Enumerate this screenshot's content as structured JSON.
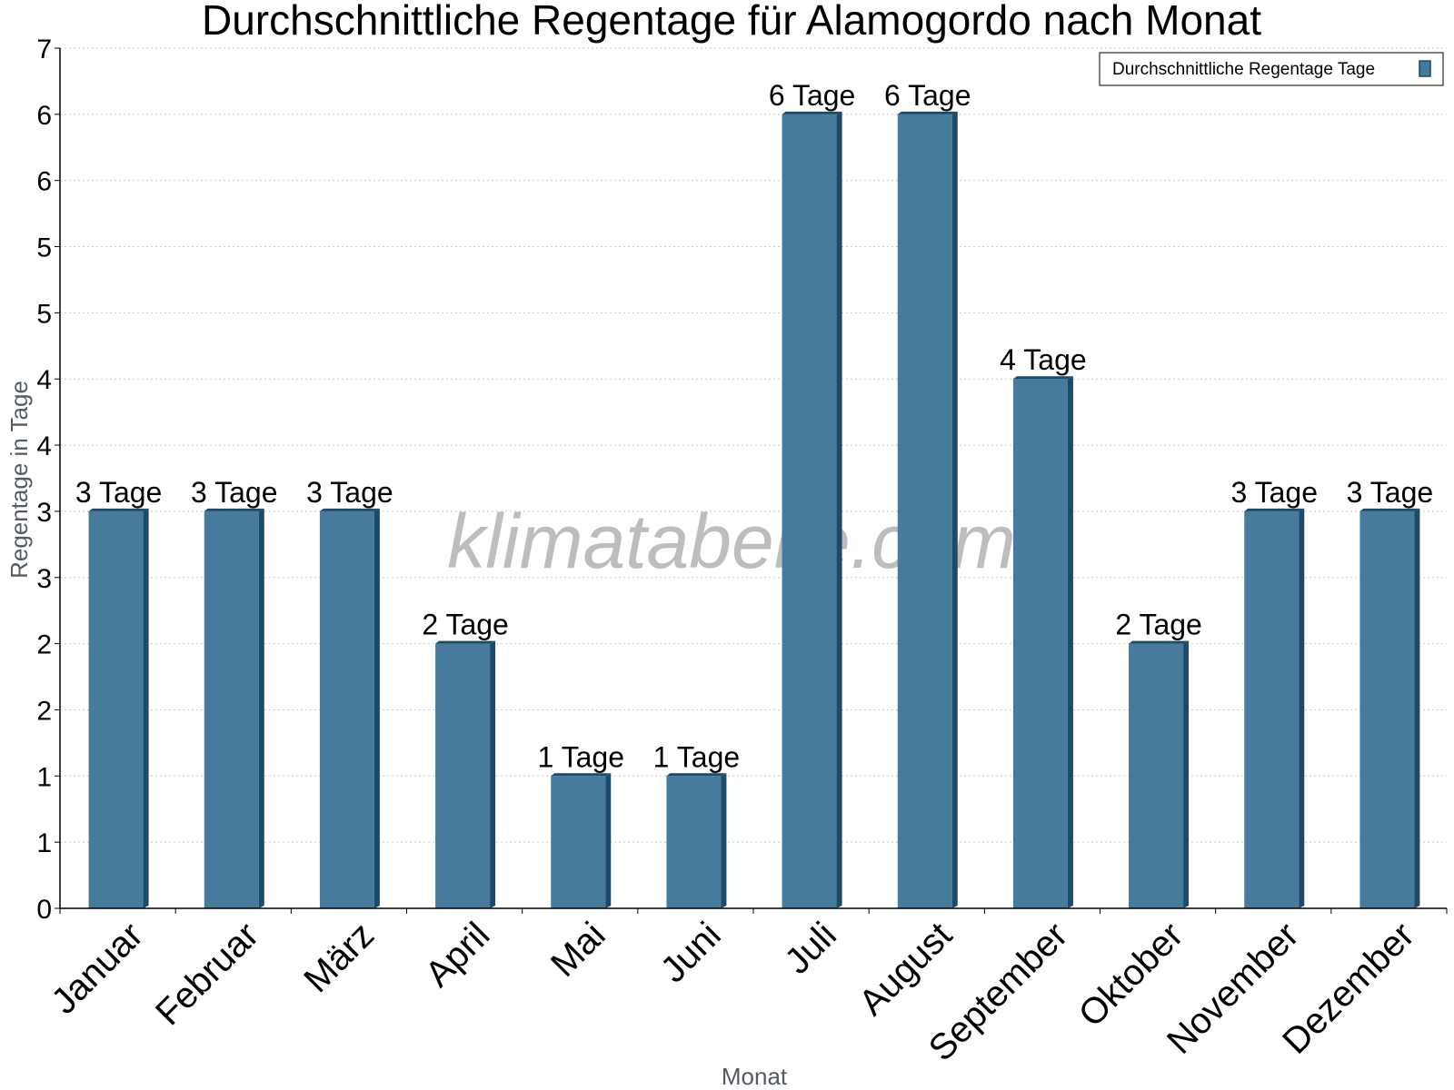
{
  "chart_data": {
    "type": "bar",
    "title": "Durchschnittliche Regentage für Alamogordo nach Monat",
    "xlabel": "Monat",
    "ylabel": "Regentage in Tage",
    "categories": [
      "Januar",
      "Februar",
      "März",
      "April",
      "Mai",
      "Juni",
      "Juli",
      "August",
      "September",
      "Oktober",
      "November",
      "Dezember"
    ],
    "series": [
      {
        "name": "Durchschnittliche Regentage Tage",
        "values": [
          3,
          3,
          3,
          2,
          1,
          1,
          6,
          6,
          4,
          2,
          3,
          3
        ],
        "labels": [
          "3 Tage",
          "3 Tage",
          "3 Tage",
          "2 Tage",
          "1 Tage",
          "1 Tage",
          "6 Tage",
          "6 Tage",
          "4 Tage",
          "2 Tage",
          "3 Tage",
          "3 Tage"
        ]
      }
    ],
    "ylim": [
      0,
      6.5
    ],
    "yticks": [
      0,
      0.5,
      1,
      1.5,
      2,
      2.5,
      3,
      3.5,
      4,
      4.5,
      5,
      5.5,
      6,
      6.5
    ],
    "ytick_labels": [
      "0",
      "1",
      "1",
      "2",
      "2",
      "3",
      "3",
      "4",
      "4",
      "5",
      "5",
      "6",
      "6",
      "7"
    ],
    "grid": true,
    "legend_position": "top-right",
    "colors": {
      "bar": "#467b9c",
      "bar_side": "#1c4a6a",
      "grid": "#c8c8c8"
    },
    "watermark": "klimatabelle.com"
  }
}
